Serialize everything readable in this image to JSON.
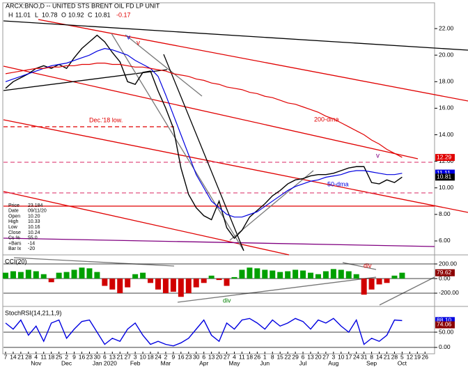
{
  "header": {
    "symbol": "ARCX:BNO,D -- UNITED STS BRENT OIL FD LP UNIT",
    "ohlc": [
      [
        "H",
        "11.01"
      ],
      [
        "L",
        "10.78"
      ],
      [
        "O",
        "10.92"
      ],
      [
        "C",
        "10.81"
      ]
    ],
    "change": "-0.17"
  },
  "info_box": [
    [
      "Price",
      "23.184"
    ],
    [
      "Date",
      "09/11/20"
    ],
    [
      "Open",
      "10.20"
    ],
    [
      "High",
      "10.33"
    ],
    [
      "Low",
      "10.16"
    ],
    [
      "Close",
      "10.24"
    ],
    [
      "Cs %",
      "55.0"
    ],
    [
      "+Bars",
      "-14"
    ],
    [
      "Bar Ix",
      "-20"
    ]
  ],
  "annotations": [
    "Dec.'18 low.",
    "v",
    "v",
    "v"
  ],
  "chart_data": [
    {
      "type": "line",
      "ylim": [
        4.95,
        22.58
      ],
      "yticks": [
        {
          "value": 22,
          "label": "22.00"
        },
        {
          "value": 20,
          "label": "20.00"
        },
        {
          "value": 18,
          "label": "18.00"
        },
        {
          "value": 16,
          "label": "16.00"
        },
        {
          "value": 14,
          "label": "14.00"
        },
        {
          "value": 12,
          "label": "12.00"
        },
        {
          "value": 10,
          "label": "10.00"
        },
        {
          "value": 8,
          "label": "8.00"
        },
        {
          "value": 6,
          "label": "6.00"
        }
      ],
      "flags": [
        {
          "value": 12.29,
          "label": "12.29",
          "color": "#e00000"
        },
        {
          "value": 11.11,
          "label": "11.11",
          "color": "#0000e0"
        },
        {
          "value": 10.81,
          "label": "10.81",
          "color": "#000000"
        }
      ],
      "series": [
        {
          "name": "price",
          "color": "#000000",
          "values": [
            17.5,
            18.0,
            18.3,
            18.6,
            19.0,
            19.2,
            19.0,
            19.3,
            19.0,
            19.8,
            20.5,
            21.0,
            21.5,
            21.0,
            20.2,
            19.5,
            18.0,
            17.8,
            18.7,
            18.8,
            17.3,
            16.0,
            14.5,
            11.5,
            9.5,
            8.5,
            7.9,
            7.6,
            9.0,
            7.0,
            6.2,
            6.8,
            7.8,
            8.3,
            8.8,
            9.4,
            9.8,
            10.3,
            10.6,
            10.7,
            10.9,
            11.0,
            11.0,
            11.1,
            11.3,
            11.5,
            11.6,
            11.6,
            10.4,
            10.3,
            10.6,
            10.4,
            10.81,
            null,
            null,
            null
          ]
        },
        {
          "name": "50-dma",
          "color": "#0000e0",
          "values": [
            18.0,
            18.2,
            18.4,
            18.6,
            18.8,
            19.0,
            19.2,
            19.3,
            19.4,
            19.6,
            19.8,
            20.0,
            20.3,
            20.5,
            20.4,
            20.2,
            20.0,
            19.6,
            19.3,
            19.0,
            18.4,
            17.0,
            15.5,
            14.0,
            12.5,
            11.0,
            10.0,
            9.0,
            8.5,
            8.0,
            7.8,
            7.8,
            8.0,
            8.2,
            8.6,
            9.0,
            9.4,
            9.8,
            10.1,
            10.3,
            10.5,
            10.6,
            10.8,
            10.9,
            11.0,
            11.2,
            11.3,
            11.3,
            11.2,
            11.1,
            11.0,
            11.0,
            11.1,
            null,
            null,
            null
          ]
        },
        {
          "name": "200-dma",
          "color": "#e00000",
          "values": [
            18.6,
            18.7,
            18.8,
            18.9,
            19.0,
            19.0,
            19.1,
            19.1,
            19.2,
            19.2,
            19.3,
            19.3,
            19.4,
            19.4,
            19.3,
            19.3,
            19.2,
            19.1,
            19.1,
            19.0,
            18.9,
            18.8,
            18.6,
            18.5,
            18.4,
            18.2,
            18.1,
            17.9,
            17.8,
            17.6,
            17.5,
            17.4,
            17.2,
            17.1,
            16.9,
            16.8,
            16.6,
            16.4,
            16.3,
            16.1,
            15.9,
            15.7,
            15.4,
            15.2,
            14.9,
            14.6,
            14.3,
            14.0,
            13.6,
            13.3,
            12.9,
            12.6,
            12.3,
            null,
            null,
            null
          ]
        }
      ]
    },
    {
      "type": "histogram-bar",
      "title": "CCI(20)",
      "ylim": [
        -362,
        305
      ],
      "yticks": [
        {
          "value": 200,
          "label": "200.00"
        },
        {
          "value": 0,
          "label": "0.00"
        },
        {
          "value": -200,
          "label": "-200.00"
        }
      ],
      "flags": [
        {
          "value": 79.62,
          "label": "79.62",
          "color": "#8b0000"
        }
      ],
      "annotations": [
        "div",
        "div"
      ],
      "series": [
        {
          "name": "CCI",
          "color": "#00a000",
          "values": [
            80,
            100,
            90,
            120,
            100,
            60,
            -50,
            80,
            90,
            120,
            150,
            140,
            90,
            -100,
            -150,
            -200,
            -120,
            60,
            80,
            -60,
            -150,
            -200,
            -180,
            -250,
            -200,
            -120,
            -60,
            40,
            -20,
            -100,
            20,
            120,
            150,
            140,
            120,
            110,
            90,
            100,
            120,
            110,
            80,
            60,
            100,
            130,
            120,
            100,
            60,
            -220,
            -150,
            -80,
            -60,
            40,
            80,
            null,
            null,
            null
          ]
        }
      ]
    },
    {
      "type": "line",
      "title": "StochRSI(14,21,1,9)",
      "ylim": [
        -14,
        130
      ],
      "yticks": [
        {
          "value": 50,
          "label": "50.00"
        },
        {
          "value": 0,
          "label": "0.00"
        }
      ],
      "flags": [
        {
          "value": 88.1,
          "label": "88.10",
          "color": "#0000e0"
        },
        {
          "value": 74.06,
          "label": "74.06",
          "color": "#8b0000"
        }
      ],
      "categories": [
        7,
        14,
        21,
        28,
        4,
        11,
        18,
        25,
        2,
        9,
        16,
        23,
        30,
        6,
        13,
        21,
        27,
        3,
        10,
        18,
        24,
        2,
        9,
        16,
        23,
        30,
        6,
        13,
        20,
        27,
        4,
        11,
        18,
        26,
        1,
        8,
        15,
        22,
        29,
        6,
        13,
        20,
        27,
        3,
        10,
        17,
        24,
        31,
        8,
        14,
        21,
        28,
        5,
        12,
        19,
        26
      ],
      "month_labels": [
        "Nov",
        "Dec",
        "Jan 2020",
        "Feb",
        "Mar",
        "Apr",
        "May",
        "Jun",
        "Jul",
        "Aug",
        "Sep",
        "Oct"
      ],
      "series": [
        {
          "name": "StochRSI",
          "color": "#0000e0",
          "values": [
            80,
            60,
            90,
            40,
            70,
            20,
            80,
            90,
            30,
            60,
            85,
            90,
            50,
            10,
            30,
            20,
            60,
            80,
            40,
            10,
            20,
            10,
            5,
            15,
            30,
            60,
            90,
            40,
            20,
            80,
            60,
            90,
            95,
            80,
            60,
            90,
            70,
            80,
            95,
            85,
            60,
            90,
            80,
            95,
            70,
            50,
            90,
            10,
            30,
            20,
            40,
            90,
            88,
            null,
            null,
            null
          ]
        }
      ]
    }
  ]
}
